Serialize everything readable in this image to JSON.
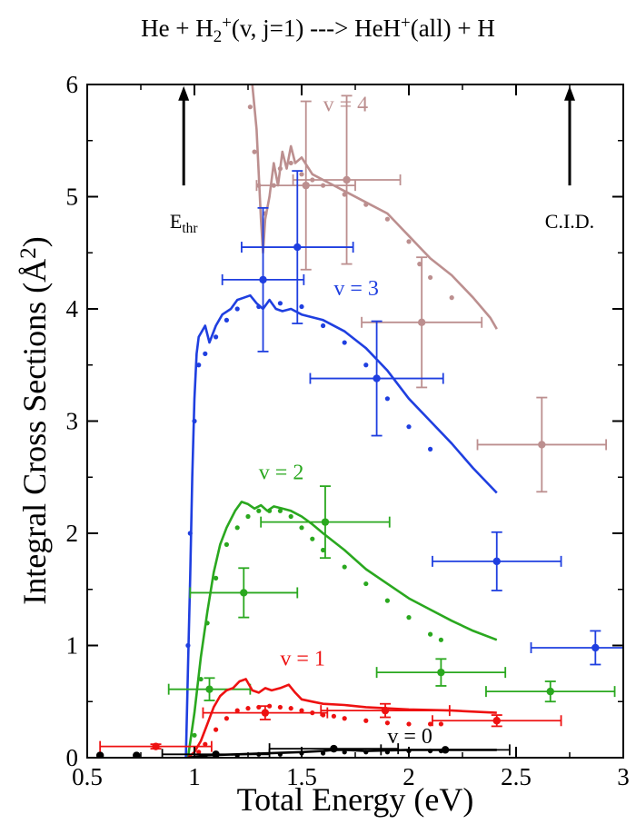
{
  "chart_data": {
    "type": "line",
    "title": {
      "parts": [
        {
          "t": "He + H",
          "s": "n"
        },
        {
          "t": "2",
          "s": "sub"
        },
        {
          "t": "+",
          "s": "sup"
        },
        {
          "t": "(v, j=1) ---> HeH",
          "s": "n"
        },
        {
          "t": "+",
          "s": "sup"
        },
        {
          "t": "(all) + H",
          "s": "n"
        }
      ]
    },
    "xlabel": "Total Energy (eV)",
    "ylabel": {
      "parts": [
        {
          "t": "Integral Cross Sections (",
          "s": "n"
        },
        {
          "t": "Å",
          "s": "n"
        },
        {
          "t": "2",
          "s": "sup"
        },
        {
          "t": ")",
          "s": "n"
        }
      ]
    },
    "xlim": [
      0.5,
      3.0
    ],
    "ylim": [
      0,
      6
    ],
    "xticks": [
      0.5,
      1.0,
      1.5,
      2.0,
      2.5,
      3.0
    ],
    "xtick_labels": [
      "0.5",
      "1",
      "1.5",
      "2",
      "2.5",
      "3"
    ],
    "yticks": [
      0,
      1,
      2,
      3,
      4,
      5,
      6
    ],
    "ytick_labels": [
      "0",
      "1",
      "2",
      "3",
      "4",
      "5",
      "6"
    ],
    "grid": false,
    "annotations": [
      {
        "name": "ethr",
        "parts": [
          {
            "t": "E",
            "s": "n"
          },
          {
            "t": "thr",
            "s": "sub"
          }
        ],
        "x": 0.95,
        "y": 5.97,
        "arrow_from": 5.1,
        "label_y": 4.72
      },
      {
        "name": "cid",
        "parts": [
          {
            "t": "C.I.D.",
            "s": "n"
          }
        ],
        "x": 2.75,
        "y": 5.97,
        "arrow_from": 5.1,
        "label_y": 4.72
      }
    ],
    "series": [
      {
        "name": "v = 4",
        "color": "#bc8f8f",
        "label_pos": [
          1.6,
          5.76
        ],
        "line": [
          [
            1.27,
            6.0
          ],
          [
            1.29,
            5.6
          ],
          [
            1.3,
            5.2
          ],
          [
            1.31,
            4.8
          ],
          [
            1.32,
            4.5
          ],
          [
            1.33,
            4.8
          ],
          [
            1.35,
            5.0
          ],
          [
            1.37,
            5.3
          ],
          [
            1.39,
            5.1
          ],
          [
            1.41,
            5.4
          ],
          [
            1.43,
            5.25
          ],
          [
            1.45,
            5.45
          ],
          [
            1.47,
            5.3
          ],
          [
            1.5,
            5.35
          ],
          [
            1.55,
            5.2
          ],
          [
            1.6,
            5.15
          ],
          [
            1.65,
            5.1
          ],
          [
            1.7,
            5.05
          ],
          [
            1.8,
            4.95
          ],
          [
            1.9,
            4.85
          ],
          [
            2.0,
            4.65
          ],
          [
            2.1,
            4.45
          ],
          [
            2.2,
            4.3
          ],
          [
            2.3,
            4.1
          ],
          [
            2.38,
            3.92
          ],
          [
            2.41,
            3.82
          ]
        ],
        "dots": [
          [
            1.26,
            5.8
          ],
          [
            1.28,
            5.4
          ],
          [
            1.3,
            5.1
          ],
          [
            1.33,
            4.85
          ],
          [
            1.37,
            5.1
          ],
          [
            1.4,
            5.25
          ],
          [
            1.45,
            5.3
          ],
          [
            1.5,
            5.2
          ],
          [
            1.55,
            5.15
          ],
          [
            1.6,
            5.1
          ],
          [
            1.7,
            5.02
          ],
          [
            1.8,
            4.93
          ],
          [
            1.9,
            4.8
          ],
          [
            2.0,
            4.6
          ],
          [
            2.05,
            4.4
          ],
          [
            2.1,
            4.28
          ],
          [
            2.2,
            4.1
          ]
        ],
        "exp": [
          {
            "x": 1.52,
            "y": 5.1,
            "xerr": 0.23,
            "yerr": 0.75
          },
          {
            "x": 1.71,
            "y": 5.15,
            "xerr": 0.25,
            "yerr": 0.75
          },
          {
            "x": 2.06,
            "y": 3.88,
            "xerr": 0.28,
            "yerr": 0.58
          },
          {
            "x": 2.62,
            "y": 2.79,
            "xerr": 0.3,
            "yerr": 0.42
          }
        ]
      },
      {
        "name": "v = 3",
        "color": "#1f3fe0",
        "label_pos": [
          1.65,
          4.12
        ],
        "line": [
          [
            0.96,
            0.0
          ],
          [
            0.97,
            0.8
          ],
          [
            0.98,
            1.6
          ],
          [
            0.99,
            2.5
          ],
          [
            1.0,
            3.2
          ],
          [
            1.01,
            3.6
          ],
          [
            1.02,
            3.75
          ],
          [
            1.05,
            3.85
          ],
          [
            1.07,
            3.7
          ],
          [
            1.1,
            3.85
          ],
          [
            1.13,
            3.95
          ],
          [
            1.17,
            4.0
          ],
          [
            1.2,
            4.08
          ],
          [
            1.23,
            4.1
          ],
          [
            1.26,
            4.12
          ],
          [
            1.29,
            4.05
          ],
          [
            1.32,
            4.0
          ],
          [
            1.35,
            4.08
          ],
          [
            1.38,
            4.0
          ],
          [
            1.41,
            3.98
          ],
          [
            1.45,
            4.0
          ],
          [
            1.5,
            3.95
          ],
          [
            1.6,
            3.9
          ],
          [
            1.7,
            3.8
          ],
          [
            1.8,
            3.65
          ],
          [
            1.9,
            3.45
          ],
          [
            2.0,
            3.2
          ],
          [
            2.1,
            3.0
          ],
          [
            2.2,
            2.8
          ],
          [
            2.3,
            2.58
          ],
          [
            2.41,
            2.36
          ]
        ],
        "dots": [
          [
            0.97,
            1.0
          ],
          [
            0.98,
            2.0
          ],
          [
            1.0,
            3.0
          ],
          [
            1.02,
            3.5
          ],
          [
            1.05,
            3.6
          ],
          [
            1.1,
            3.75
          ],
          [
            1.15,
            3.9
          ],
          [
            1.2,
            4.0
          ],
          [
            1.3,
            4.02
          ],
          [
            1.4,
            4.05
          ],
          [
            1.5,
            4.02
          ],
          [
            1.6,
            3.85
          ],
          [
            1.7,
            3.7
          ],
          [
            1.8,
            3.5
          ],
          [
            1.9,
            3.2
          ],
          [
            2.0,
            2.95
          ],
          [
            2.1,
            2.75
          ]
        ],
        "exp": [
          {
            "x": 1.32,
            "y": 4.26,
            "xerr": 0.19,
            "yerr": 0.64
          },
          {
            "x": 1.48,
            "y": 4.55,
            "xerr": 0.26,
            "yerr": 0.68
          },
          {
            "x": 1.85,
            "y": 3.38,
            "xerr": 0.31,
            "yerr": 0.51
          },
          {
            "x": 2.41,
            "y": 1.75,
            "xerr": 0.3,
            "yerr": 0.26
          },
          {
            "x": 2.87,
            "y": 0.98,
            "xerr": 0.3,
            "yerr": 0.15
          }
        ]
      },
      {
        "name": "v = 2",
        "color": "#2aa81f",
        "label_pos": [
          1.3,
          2.48
        ],
        "line": [
          [
            0.97,
            0.0
          ],
          [
            1.0,
            0.4
          ],
          [
            1.03,
            0.9
          ],
          [
            1.06,
            1.3
          ],
          [
            1.09,
            1.65
          ],
          [
            1.12,
            1.9
          ],
          [
            1.15,
            2.05
          ],
          [
            1.19,
            2.2
          ],
          [
            1.22,
            2.28
          ],
          [
            1.25,
            2.26
          ],
          [
            1.28,
            2.22
          ],
          [
            1.31,
            2.25
          ],
          [
            1.34,
            2.2
          ],
          [
            1.37,
            2.24
          ],
          [
            1.41,
            2.22
          ],
          [
            1.45,
            2.2
          ],
          [
            1.5,
            2.15
          ],
          [
            1.55,
            2.08
          ],
          [
            1.6,
            2.0
          ],
          [
            1.7,
            1.85
          ],
          [
            1.8,
            1.68
          ],
          [
            1.9,
            1.55
          ],
          [
            2.0,
            1.42
          ],
          [
            2.1,
            1.32
          ],
          [
            2.2,
            1.22
          ],
          [
            2.3,
            1.13
          ],
          [
            2.41,
            1.05
          ]
        ],
        "dots": [
          [
            1.0,
            0.2
          ],
          [
            1.03,
            0.7
          ],
          [
            1.06,
            1.2
          ],
          [
            1.1,
            1.6
          ],
          [
            1.15,
            1.9
          ],
          [
            1.2,
            2.05
          ],
          [
            1.25,
            2.15
          ],
          [
            1.3,
            2.2
          ],
          [
            1.35,
            2.2
          ],
          [
            1.4,
            2.2
          ],
          [
            1.45,
            2.15
          ],
          [
            1.5,
            2.05
          ],
          [
            1.55,
            1.95
          ],
          [
            1.6,
            1.85
          ],
          [
            1.7,
            1.7
          ],
          [
            1.8,
            1.55
          ],
          [
            1.9,
            1.4
          ],
          [
            2.0,
            1.25
          ],
          [
            2.1,
            1.1
          ],
          [
            2.15,
            1.05
          ]
        ],
        "exp": [
          {
            "x": 1.07,
            "y": 0.61,
            "xerr": 0.19,
            "yerr": 0.1
          },
          {
            "x": 1.23,
            "y": 1.47,
            "xerr": 0.25,
            "yerr": 0.22
          },
          {
            "x": 1.61,
            "y": 2.1,
            "xerr": 0.3,
            "yerr": 0.32
          },
          {
            "x": 2.15,
            "y": 0.76,
            "xerr": 0.3,
            "yerr": 0.12
          },
          {
            "x": 2.66,
            "y": 0.59,
            "xerr": 0.3,
            "yerr": 0.09
          }
        ]
      },
      {
        "name": "v = 1",
        "color": "#ee1111",
        "label_pos": [
          1.4,
          0.82
        ],
        "line": [
          [
            0.97,
            0.0
          ],
          [
            1.0,
            0.05
          ],
          [
            1.03,
            0.15
          ],
          [
            1.06,
            0.3
          ],
          [
            1.09,
            0.45
          ],
          [
            1.12,
            0.55
          ],
          [
            1.15,
            0.6
          ],
          [
            1.18,
            0.62
          ],
          [
            1.21,
            0.68
          ],
          [
            1.24,
            0.7
          ],
          [
            1.27,
            0.6
          ],
          [
            1.3,
            0.58
          ],
          [
            1.33,
            0.62
          ],
          [
            1.36,
            0.6
          ],
          [
            1.4,
            0.62
          ],
          [
            1.44,
            0.65
          ],
          [
            1.47,
            0.58
          ],
          [
            1.5,
            0.52
          ],
          [
            1.55,
            0.5
          ],
          [
            1.6,
            0.48
          ],
          [
            1.7,
            0.47
          ],
          [
            1.8,
            0.45
          ],
          [
            1.9,
            0.44
          ],
          [
            2.0,
            0.43
          ],
          [
            2.2,
            0.42
          ],
          [
            2.41,
            0.4
          ]
        ],
        "dots": [
          [
            1.02,
            0.05
          ],
          [
            1.05,
            0.12
          ],
          [
            1.1,
            0.25
          ],
          [
            1.15,
            0.35
          ],
          [
            1.2,
            0.42
          ],
          [
            1.25,
            0.44
          ],
          [
            1.3,
            0.45
          ],
          [
            1.35,
            0.46
          ],
          [
            1.4,
            0.45
          ],
          [
            1.45,
            0.44
          ],
          [
            1.5,
            0.42
          ],
          [
            1.55,
            0.4
          ],
          [
            1.6,
            0.38
          ],
          [
            1.65,
            0.37
          ],
          [
            1.7,
            0.35
          ],
          [
            1.8,
            0.33
          ],
          [
            1.9,
            0.31
          ],
          [
            2.0,
            0.3
          ],
          [
            2.1,
            0.3
          ],
          [
            2.15,
            0.3
          ]
        ],
        "exp": [
          {
            "x": 0.82,
            "y": 0.1,
            "xerr": 0.26,
            "yerr": 0.02
          },
          {
            "x": 1.33,
            "y": 0.4,
            "xerr": 0.29,
            "yerr": 0.06
          },
          {
            "x": 1.89,
            "y": 0.42,
            "xerr": 0.3,
            "yerr": 0.06
          },
          {
            "x": 2.41,
            "y": 0.33,
            "xerr": 0.3,
            "yerr": 0.05
          }
        ]
      },
      {
        "name": "v = 0",
        "color": "#000000",
        "label_pos": [
          1.9,
          0.13
        ],
        "line": [
          [
            0.97,
            0.0
          ],
          [
            1.05,
            0.02
          ],
          [
            1.2,
            0.03
          ],
          [
            1.35,
            0.04
          ],
          [
            1.5,
            0.05
          ],
          [
            1.6,
            0.06
          ],
          [
            1.65,
            0.07
          ],
          [
            1.7,
            0.07
          ],
          [
            1.8,
            0.06
          ],
          [
            2.0,
            0.07
          ],
          [
            2.2,
            0.07
          ],
          [
            2.41,
            0.07
          ]
        ],
        "dots": [
          [
            1.05,
            0.01
          ],
          [
            1.1,
            0.02
          ],
          [
            1.2,
            0.02
          ],
          [
            1.3,
            0.03
          ],
          [
            1.4,
            0.03
          ],
          [
            1.5,
            0.04
          ],
          [
            1.6,
            0.04
          ],
          [
            1.7,
            0.05
          ],
          [
            1.8,
            0.05
          ],
          [
            1.9,
            0.05
          ],
          [
            2.0,
            0.06
          ],
          [
            2.1,
            0.06
          ],
          [
            2.15,
            0.06
          ]
        ],
        "exp": [
          {
            "x": 0.56,
            "y": 0.02,
            "xerr": 0.0,
            "yerr": 0.0
          },
          {
            "x": 0.73,
            "y": 0.02,
            "xerr": 0.0,
            "yerr": 0.0
          },
          {
            "x": 1.1,
            "y": 0.03,
            "xerr": 0.25,
            "yerr": 0.0
          },
          {
            "x": 1.65,
            "y": 0.08,
            "xerr": 0.3,
            "yerr": 0.0
          },
          {
            "x": 2.17,
            "y": 0.07,
            "xerr": 0.3,
            "yerr": 0.0
          }
        ]
      }
    ]
  }
}
